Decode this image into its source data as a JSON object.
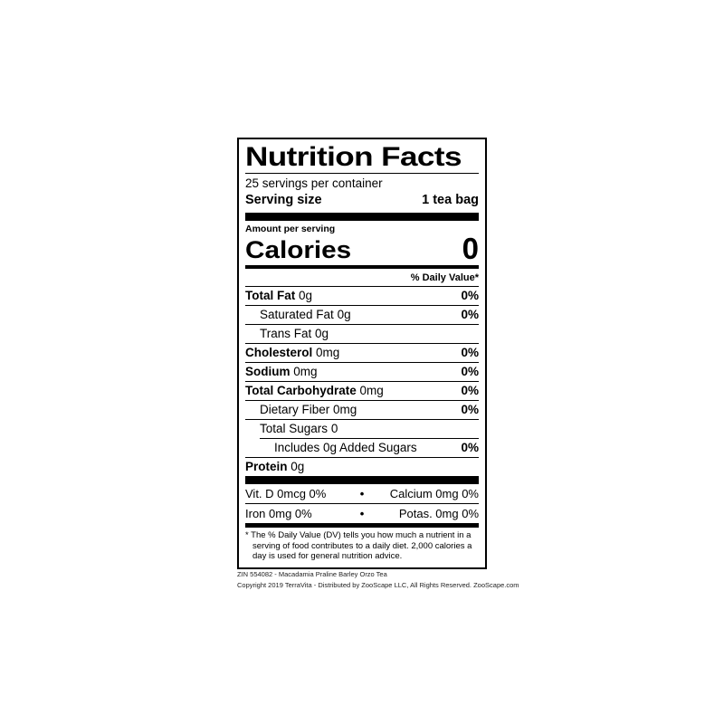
{
  "label": {
    "title": "Nutrition Facts",
    "servings_per_container": "25 servings per container",
    "serving_size_label": "Serving size",
    "serving_size_value": "1 tea bag",
    "amount_per_serving": "Amount per serving",
    "calories_label": "Calories",
    "calories_value": "0",
    "daily_value_header": "% Daily Value*",
    "rows": [
      {
        "name": "Total Fat",
        "amount": "0g",
        "dv": "0%"
      },
      {
        "name": "Saturated Fat",
        "amount": "0g",
        "dv": "0%"
      },
      {
        "name": "Trans Fat",
        "amount": "0g",
        "dv": ""
      },
      {
        "name": "Cholesterol",
        "amount": "0mg",
        "dv": "0%"
      },
      {
        "name": "Sodium",
        "amount": "0mg",
        "dv": "0%"
      },
      {
        "name": "Total Carbohydrate",
        "amount": "0mg",
        "dv": "0%"
      },
      {
        "name": "Dietary Fiber",
        "amount": "0mg",
        "dv": "0%"
      },
      {
        "name": "Total Sugars",
        "amount": "0",
        "dv": ""
      },
      {
        "name": "Includes 0g Added Sugars",
        "amount": "",
        "dv": "0%"
      },
      {
        "name": "Protein",
        "amount": "0g",
        "dv": ""
      }
    ],
    "micronutrients": [
      {
        "left": "Vit. D 0mcg 0%",
        "bullet": "•",
        "right": "Calcium 0mg 0%"
      },
      {
        "left": "Iron 0mg 0%",
        "bullet": "•",
        "right": "Potas. 0mg 0%"
      }
    ],
    "footnote": "* The % Daily Value (DV) tells you how much a nutrient in a serving of food contributes to a daily diet. 2,000 calories a day is used for general nutrition advice."
  },
  "footer": {
    "line1": "ZIN 554082 - Macadamia Praline Barley Orzo Tea",
    "line2": "Copyright 2019 TerraVita - Distributed by ZooScape LLC, All Rights Reserved. ZooScape.com"
  },
  "colors": {
    "ink": "#000000",
    "background": "#ffffff"
  }
}
